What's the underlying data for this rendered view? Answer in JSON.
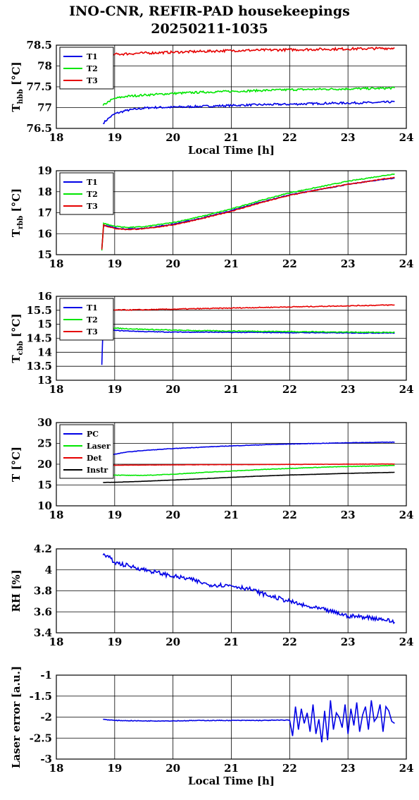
{
  "title": [
    "INO-CNR, REFIR-PAD housekeepings",
    "20250211-1035"
  ],
  "colors": {
    "blue": "#0000e6",
    "green": "#00e600",
    "red": "#e60000",
    "black": "#000000"
  },
  "chart_data": [
    {
      "type": "line",
      "ylabel": "T",
      "ylabel_sub": "hbb",
      "ylabel_unit": " [°C]",
      "xlabel": "Local Time [h]",
      "xlim": [
        18,
        24
      ],
      "ylim": [
        76.5,
        78.5
      ],
      "xticks": [
        18,
        19,
        20,
        21,
        22,
        23,
        24
      ],
      "yticks": [
        76.5,
        77,
        77.5,
        78,
        78.5
      ],
      "ytick_labels": [
        "76.5",
        "77",
        "77.5",
        "78",
        "78.5"
      ],
      "grid": true,
      "legend": "top-left",
      "series": [
        {
          "name": "T1",
          "color": "blue",
          "noise": 0.025,
          "x": [
            18.8,
            18.9,
            19.0,
            19.2,
            19.4,
            19.6,
            20.0,
            20.5,
            21.0,
            21.5,
            22.0,
            22.5,
            23.0,
            23.5,
            23.8
          ],
          "y": [
            76.62,
            76.75,
            76.85,
            76.93,
            76.97,
            77.0,
            77.01,
            77.03,
            77.05,
            77.07,
            77.08,
            77.1,
            77.11,
            77.12,
            77.14
          ]
        },
        {
          "name": "T2",
          "color": "green",
          "noise": 0.025,
          "x": [
            18.8,
            18.9,
            19.0,
            19.2,
            19.5,
            20.0,
            20.5,
            21.0,
            21.5,
            22.0,
            22.5,
            23.0,
            23.5,
            23.8
          ],
          "y": [
            77.05,
            77.15,
            77.22,
            77.27,
            77.3,
            77.34,
            77.37,
            77.39,
            77.41,
            77.43,
            77.44,
            77.45,
            77.46,
            77.47
          ]
        },
        {
          "name": "T3",
          "color": "red",
          "noise": 0.03,
          "x": [
            18.8,
            19.0,
            19.5,
            20.0,
            20.5,
            21.0,
            21.5,
            22.0,
            22.5,
            23.0,
            23.5,
            23.8
          ],
          "y": [
            78.25,
            78.28,
            78.31,
            78.33,
            78.35,
            78.37,
            78.38,
            78.39,
            78.4,
            78.41,
            78.42,
            78.43
          ]
        }
      ]
    },
    {
      "type": "line",
      "ylabel": "T",
      "ylabel_sub": "rbb",
      "ylabel_unit": " [°C]",
      "xlabel": "",
      "xlim": [
        18,
        24
      ],
      "ylim": [
        15,
        19
      ],
      "xticks": [
        18,
        19,
        20,
        21,
        22,
        23,
        24
      ],
      "yticks": [
        15,
        16,
        17,
        18,
        19
      ],
      "ytick_labels": [
        "15",
        "16",
        "17",
        "18",
        "19"
      ],
      "grid": true,
      "legend": "top-left",
      "series": [
        {
          "name": "T1",
          "color": "blue",
          "noise": 0.02,
          "x": [
            18.78,
            18.81,
            18.9,
            19.0,
            19.2,
            19.5,
            20.0,
            20.5,
            21.0,
            21.5,
            22.0,
            22.5,
            23.0,
            23.5,
            23.8
          ],
          "y": [
            15.3,
            16.4,
            16.35,
            16.28,
            16.22,
            16.25,
            16.45,
            16.75,
            17.1,
            17.5,
            17.85,
            18.1,
            18.35,
            18.55,
            18.65
          ]
        },
        {
          "name": "T2",
          "color": "green",
          "noise": 0.02,
          "x": [
            18.78,
            18.81,
            18.9,
            19.0,
            19.2,
            19.5,
            20.0,
            20.5,
            21.0,
            21.5,
            22.0,
            22.5,
            23.0,
            23.5,
            23.8
          ],
          "y": [
            15.2,
            16.5,
            16.42,
            16.36,
            16.3,
            16.33,
            16.53,
            16.83,
            17.18,
            17.58,
            17.95,
            18.22,
            18.5,
            18.72,
            18.85
          ]
        },
        {
          "name": "T3",
          "color": "red",
          "noise": 0.02,
          "x": [
            18.78,
            18.81,
            18.9,
            19.0,
            19.2,
            19.5,
            20.0,
            20.5,
            21.0,
            21.5,
            22.0,
            22.5,
            23.0,
            23.5,
            23.8
          ],
          "y": [
            15.25,
            16.42,
            16.32,
            16.25,
            16.2,
            16.23,
            16.42,
            16.72,
            17.07,
            17.47,
            17.83,
            18.1,
            18.35,
            18.56,
            18.68
          ]
        }
      ]
    },
    {
      "type": "line",
      "ylabel": "T",
      "ylabel_sub": "cbb",
      "ylabel_unit": " [°C]",
      "xlabel": "",
      "xlim": [
        18,
        24
      ],
      "ylim": [
        13,
        16
      ],
      "xticks": [
        18,
        19,
        20,
        21,
        22,
        23,
        24
      ],
      "yticks": [
        13,
        13.5,
        14,
        14.5,
        15,
        15.5,
        16
      ],
      "ytick_labels": [
        "13",
        "13.5",
        "14",
        "14.5",
        "15",
        "15.5",
        "16"
      ],
      "grid": true,
      "legend": "top-left",
      "series": [
        {
          "name": "T1",
          "color": "blue",
          "noise": 0.012,
          "x": [
            18.78,
            18.8,
            18.85,
            19.0,
            19.5,
            20.0,
            20.5,
            21.0,
            21.5,
            22.0,
            22.5,
            23.0,
            23.5,
            23.8
          ],
          "y": [
            13.55,
            14.85,
            14.82,
            14.78,
            14.74,
            14.72,
            14.72,
            14.71,
            14.71,
            14.7,
            14.7,
            14.69,
            14.69,
            14.69
          ]
        },
        {
          "name": "T2",
          "color": "green",
          "noise": 0.015,
          "x": [
            18.78,
            18.8,
            18.85,
            19.0,
            19.5,
            20.0,
            20.5,
            21.0,
            21.5,
            22.0,
            22.5,
            23.0,
            23.5,
            23.8
          ],
          "y": [
            14.8,
            14.92,
            14.9,
            14.86,
            14.82,
            14.79,
            14.77,
            14.76,
            14.75,
            14.74,
            14.73,
            14.72,
            14.71,
            14.71
          ]
        },
        {
          "name": "T3",
          "color": "red",
          "noise": 0.015,
          "x": [
            18.8,
            19.0,
            19.5,
            20.0,
            20.5,
            21.0,
            21.5,
            22.0,
            22.5,
            23.0,
            23.5,
            23.8
          ],
          "y": [
            15.5,
            15.51,
            15.52,
            15.54,
            15.56,
            15.58,
            15.6,
            15.62,
            15.64,
            15.66,
            15.68,
            15.69
          ]
        }
      ]
    },
    {
      "type": "line",
      "ylabel": "T [°C]",
      "ylabel_sub": "",
      "ylabel_unit": "",
      "xlabel": "",
      "xlim": [
        18,
        24
      ],
      "ylim": [
        10,
        30
      ],
      "xticks": [
        18,
        19,
        20,
        21,
        22,
        23,
        24
      ],
      "yticks": [
        10,
        15,
        20,
        25,
        30
      ],
      "ytick_labels": [
        "10",
        "15",
        "20",
        "25",
        "30"
      ],
      "grid": true,
      "legend": "top-left",
      "series": [
        {
          "name": "PC",
          "color": "blue",
          "noise": 0.05,
          "x": [
            18.8,
            19.0,
            19.2,
            19.5,
            20.0,
            20.5,
            21.0,
            21.5,
            22.0,
            22.5,
            23.0,
            23.5,
            23.8
          ],
          "y": [
            21.6,
            22.4,
            22.9,
            23.3,
            23.75,
            24.1,
            24.4,
            24.65,
            24.85,
            25.0,
            25.15,
            25.25,
            25.3
          ]
        },
        {
          "name": "Laser",
          "color": "green",
          "noise": 0.06,
          "x": [
            18.8,
            19.0,
            19.3,
            19.6,
            20.0,
            20.5,
            21.0,
            21.5,
            22.0,
            22.5,
            23.0,
            23.5,
            23.8
          ],
          "y": [
            17.6,
            17.4,
            17.3,
            17.35,
            17.6,
            18.0,
            18.35,
            18.7,
            19.0,
            19.25,
            19.45,
            19.6,
            19.7
          ]
        },
        {
          "name": "Det",
          "color": "red",
          "noise": 0.03,
          "x": [
            18.8,
            19.5,
            20.0,
            21.0,
            22.0,
            23.0,
            23.8
          ],
          "y": [
            19.75,
            19.8,
            19.85,
            19.9,
            19.95,
            20.0,
            20.05
          ]
        },
        {
          "name": "Instr",
          "color": "black",
          "noise": 0.02,
          "x": [
            18.8,
            19.0,
            19.5,
            20.0,
            20.5,
            21.0,
            21.5,
            22.0,
            22.5,
            23.0,
            23.5,
            23.8
          ],
          "y": [
            15.6,
            15.65,
            15.9,
            16.2,
            16.5,
            16.85,
            17.15,
            17.4,
            17.6,
            17.8,
            17.95,
            18.05
          ]
        }
      ]
    },
    {
      "type": "line",
      "ylabel": "RH [%]",
      "ylabel_sub": "",
      "ylabel_unit": "",
      "xlabel": "",
      "xlim": [
        18,
        24
      ],
      "ylim": [
        3.4,
        4.2
      ],
      "xticks": [
        18,
        19,
        20,
        21,
        22,
        23,
        24
      ],
      "yticks": [
        3.4,
        3.6,
        3.8,
        4.0,
        4.2
      ],
      "ytick_labels": [
        "3.4",
        "3.6",
        "3.8",
        "4",
        "4.2"
      ],
      "grid": true,
      "legend": "",
      "series": [
        {
          "name": "",
          "color": "blue",
          "noise": 0.02,
          "x": [
            18.8,
            18.9,
            19.0,
            19.3,
            19.6,
            20.0,
            20.3,
            20.6,
            21.0,
            21.3,
            21.6,
            22.0,
            22.3,
            22.6,
            23.0,
            23.3,
            23.6,
            23.8
          ],
          "y": [
            4.14,
            4.12,
            4.07,
            4.03,
            3.99,
            3.94,
            3.91,
            3.86,
            3.85,
            3.82,
            3.76,
            3.7,
            3.65,
            3.62,
            3.56,
            3.55,
            3.53,
            3.5
          ]
        }
      ]
    },
    {
      "type": "line",
      "ylabel": "Laser error [a.u.]",
      "ylabel_sub": "",
      "ylabel_unit": "",
      "xlabel": "Local Time [h]",
      "xlim": [
        18,
        24
      ],
      "ylim": [
        -3,
        -1
      ],
      "xticks": [
        18,
        19,
        20,
        21,
        22,
        23,
        24
      ],
      "yticks": [
        -3,
        -2.5,
        -2,
        -1.5,
        -1
      ],
      "ytick_labels": [
        "-3",
        "-2.5",
        "-2",
        "-1.5",
        "-1"
      ],
      "grid": true,
      "legend": "",
      "series": [
        {
          "name": "",
          "color": "blue",
          "noise": 0.008,
          "x": [
            18.8,
            19.0,
            19.5,
            20.0,
            20.5,
            21.0,
            21.5,
            22.0
          ],
          "y": [
            -2.05,
            -2.08,
            -2.09,
            -2.09,
            -2.08,
            -2.08,
            -2.08,
            -2.07
          ]
        },
        {
          "name": "",
          "color": "blue",
          "noise": 0.0,
          "x": [
            22.0,
            22.05,
            22.1,
            22.15,
            22.2,
            22.25,
            22.3,
            22.35,
            22.4,
            22.45,
            22.5,
            22.55,
            22.6,
            22.65,
            22.7,
            22.75,
            22.8,
            22.85,
            22.9,
            22.95,
            23.0,
            23.05,
            23.1,
            23.15,
            23.2,
            23.25,
            23.3,
            23.35,
            23.4,
            23.45,
            23.5,
            23.55,
            23.6,
            23.65,
            23.7,
            23.75,
            23.8
          ],
          "y": [
            -2.07,
            -2.45,
            -1.75,
            -2.3,
            -1.8,
            -2.15,
            -1.9,
            -2.35,
            -1.7,
            -2.4,
            -2.05,
            -2.6,
            -1.85,
            -2.55,
            -1.6,
            -2.3,
            -1.9,
            -2.0,
            -2.25,
            -1.7,
            -2.4,
            -1.8,
            -2.2,
            -1.65,
            -2.35,
            -1.95,
            -1.75,
            -2.3,
            -1.6,
            -2.1,
            -2.0,
            -1.7,
            -2.35,
            -1.75,
            -1.85,
            -2.1,
            -2.15
          ]
        }
      ]
    }
  ]
}
